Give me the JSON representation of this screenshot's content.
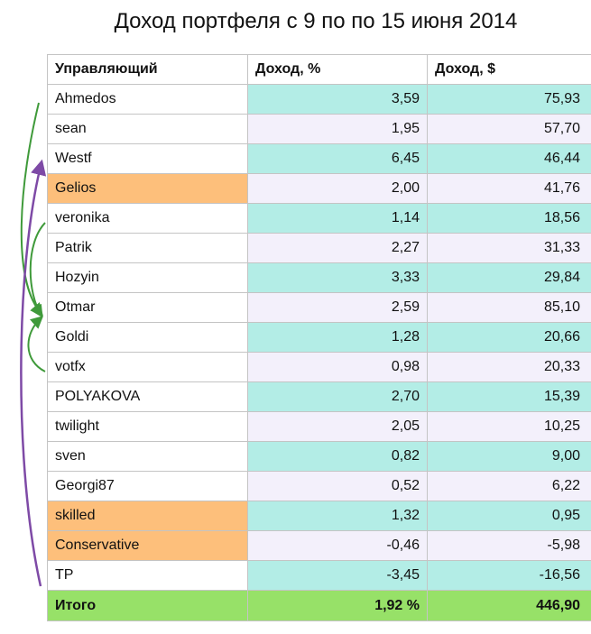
{
  "title": "Доход портфеля с 9 по по 15 июня 2014",
  "colors": {
    "highlight_teal": "#b3ede6",
    "highlight_lavender": "#f3f0fb",
    "manager_orange": "#fdbf7b",
    "total_green": "#97e168",
    "arrow_green": "#3f9a3a",
    "arrow_purple": "#7e4aa6"
  },
  "table": {
    "headers": {
      "manager": "Управляющий",
      "income_pct": "Доход, %",
      "income_usd": "Доход, $"
    },
    "rows": [
      {
        "manager": "Ahmedos",
        "pct": "3,59",
        "usd": "75,93",
        "manager_highlight": false,
        "teal": true
      },
      {
        "manager": "sean",
        "pct": "1,95",
        "usd": "57,70",
        "manager_highlight": false,
        "teal": false
      },
      {
        "manager": "Westf",
        "pct": "6,45",
        "usd": "46,44",
        "manager_highlight": false,
        "teal": true
      },
      {
        "manager": "Gelios",
        "pct": "2,00",
        "usd": "41,76",
        "manager_highlight": true,
        "teal": false
      },
      {
        "manager": "veronika",
        "pct": "1,14",
        "usd": "18,56",
        "manager_highlight": false,
        "teal": true
      },
      {
        "manager": "Patrik",
        "pct": "2,27",
        "usd": "31,33",
        "manager_highlight": false,
        "teal": false
      },
      {
        "manager": "Hozyin",
        "pct": "3,33",
        "usd": "29,84",
        "manager_highlight": false,
        "teal": true
      },
      {
        "manager": "Otmar",
        "pct": "2,59",
        "usd": "85,10",
        "manager_highlight": false,
        "teal": false
      },
      {
        "manager": "Goldi",
        "pct": "1,28",
        "usd": "20,66",
        "manager_highlight": false,
        "teal": true
      },
      {
        "manager": "votfx",
        "pct": "0,98",
        "usd": "20,33",
        "manager_highlight": false,
        "teal": false
      },
      {
        "manager": "POLYAKOVA",
        "pct": "2,70",
        "usd": "15,39",
        "manager_highlight": false,
        "teal": true
      },
      {
        "manager": "twilight",
        "pct": "2,05",
        "usd": "10,25",
        "manager_highlight": false,
        "teal": false
      },
      {
        "manager": "sven",
        "pct": "0,82",
        "usd": "9,00",
        "manager_highlight": false,
        "teal": true
      },
      {
        "manager": "Georgi87",
        "pct": "0,52",
        "usd": "6,22",
        "manager_highlight": false,
        "teal": false
      },
      {
        "manager": "skilled",
        "pct": "1,32",
        "usd": "0,95",
        "manager_highlight": true,
        "teal": true
      },
      {
        "manager": "Conservative",
        "pct": "-0,46",
        "usd": "-5,98",
        "manager_highlight": true,
        "teal": false
      },
      {
        "manager": "TP",
        "pct": "-3,45",
        "usd": "-16,56",
        "manager_highlight": false,
        "teal": true
      }
    ],
    "total": {
      "label": "Итого",
      "pct": "1,92 %",
      "usd": "446,90"
    }
  }
}
